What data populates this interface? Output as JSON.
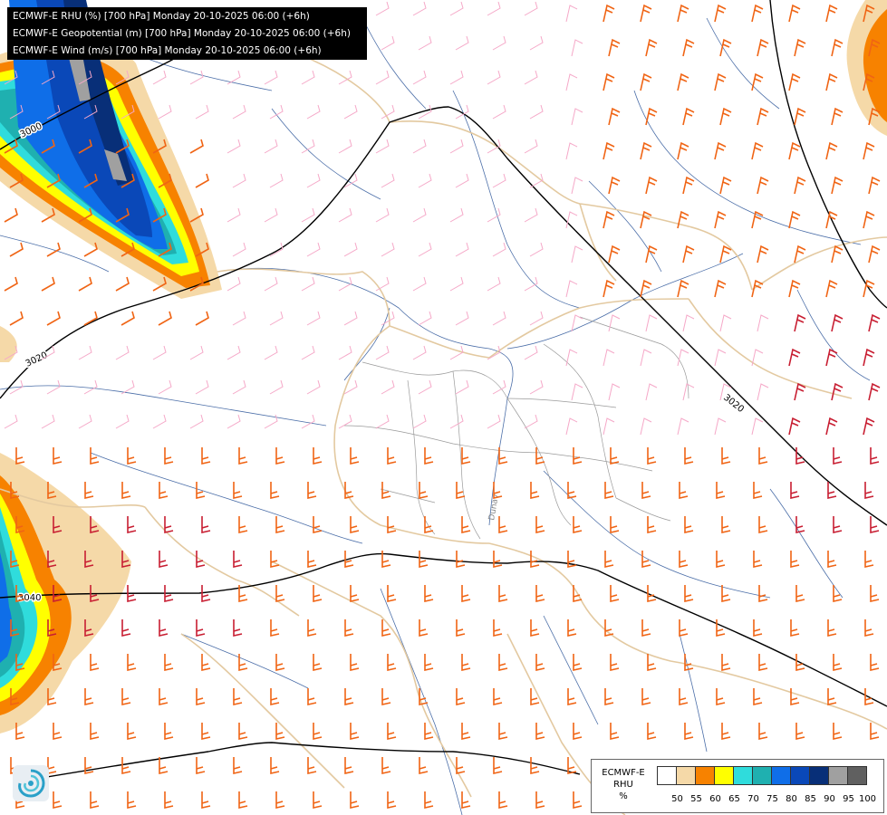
{
  "header": {
    "lines": [
      "ECMWF-E RHU (%) [700 hPa] Monday 20-10-2025 06:00 (+6h)",
      "ECMWF-E Geopotential (m) [700 hPa] Monday 20-10-2025 06:00 (+6h)",
      "ECMWF-E Wind (m/s) [700 hPa] Monday 20-10-2025 06:00 (+6h)"
    ]
  },
  "contours": [
    "3000",
    "3020",
    "3020",
    "3040"
  ],
  "river_label": "Dunav",
  "legend": {
    "title": [
      "ECMWF-E",
      "RHU",
      "%"
    ],
    "ticks": [
      "50",
      "55",
      "60",
      "65",
      "70",
      "75",
      "80",
      "85",
      "90",
      "95",
      "100"
    ],
    "colors": [
      "#ffffff",
      "#f5d9a8",
      "#f78200",
      "#ffff00",
      "#2fdcdc",
      "#1fb0b0",
      "#0f6ee8",
      "#0a48b8",
      "#082f78",
      "#a0a0a0",
      "#606060"
    ]
  },
  "palette": {
    "border": "#e3c9a0",
    "inner_border": "#9a9a9a",
    "river": "#4b6ea8",
    "isohypse": "#000000",
    "wind_light": "#f5a8c8",
    "wind_mid": "#f06414",
    "wind_strong": "#c81e32"
  }
}
